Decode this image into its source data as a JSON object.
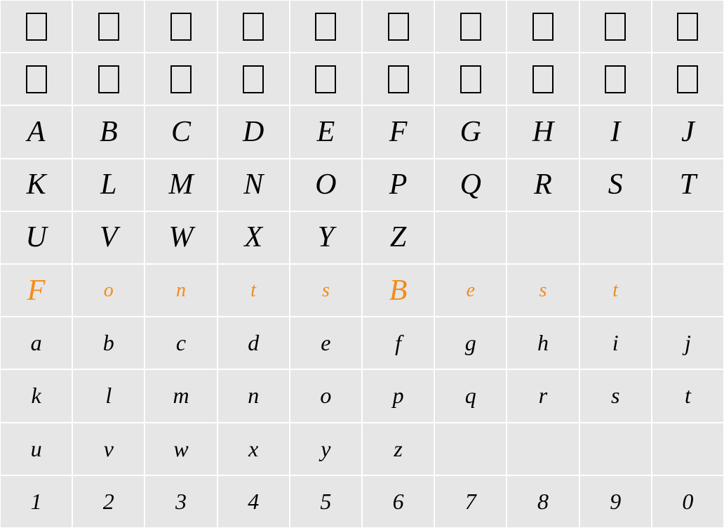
{
  "grid": {
    "type": "table",
    "columns": 10,
    "rows": 10,
    "background_color": "#e6e6e6",
    "grid_line_color": "#ffffff",
    "cell_border_width": 1,
    "default_text_color": "#000000",
    "highlight_text_color": "#f28c1a",
    "cell_font_family": "serif-italic",
    "cells": [
      [
        {
          "type": "none"
        },
        {
          "type": "none"
        },
        {
          "type": "none"
        },
        {
          "type": "none"
        },
        {
          "type": "none"
        },
        {
          "type": "none"
        },
        {
          "type": "none"
        },
        {
          "type": "none"
        },
        {
          "type": "none"
        },
        {
          "type": "none"
        }
      ],
      [
        {
          "type": "none"
        },
        {
          "type": "none"
        },
        {
          "type": "none"
        },
        {
          "type": "none"
        },
        {
          "type": "none"
        },
        {
          "type": "none"
        },
        {
          "type": "none"
        },
        {
          "type": "none"
        },
        {
          "type": "none"
        },
        {
          "type": "none"
        }
      ],
      [
        {
          "type": "glyph",
          "value": "A",
          "size": "big"
        },
        {
          "type": "glyph",
          "value": "B",
          "size": "big"
        },
        {
          "type": "glyph",
          "value": "C",
          "size": "big"
        },
        {
          "type": "glyph",
          "value": "D",
          "size": "big"
        },
        {
          "type": "glyph",
          "value": "E",
          "size": "big"
        },
        {
          "type": "glyph",
          "value": "F",
          "size": "big"
        },
        {
          "type": "glyph",
          "value": "G",
          "size": "big"
        },
        {
          "type": "glyph",
          "value": "H",
          "size": "big"
        },
        {
          "type": "glyph",
          "value": "I",
          "size": "big"
        },
        {
          "type": "glyph",
          "value": "J",
          "size": "big"
        }
      ],
      [
        {
          "type": "glyph",
          "value": "K",
          "size": "big"
        },
        {
          "type": "glyph",
          "value": "L",
          "size": "big"
        },
        {
          "type": "glyph",
          "value": "M",
          "size": "big"
        },
        {
          "type": "glyph",
          "value": "N",
          "size": "big"
        },
        {
          "type": "glyph",
          "value": "O",
          "size": "big"
        },
        {
          "type": "glyph",
          "value": "P",
          "size": "big"
        },
        {
          "type": "glyph",
          "value": "Q",
          "size": "big"
        },
        {
          "type": "glyph",
          "value": "R",
          "size": "big"
        },
        {
          "type": "glyph",
          "value": "S",
          "size": "big"
        },
        {
          "type": "glyph",
          "value": "T",
          "size": "big"
        }
      ],
      [
        {
          "type": "glyph",
          "value": "U",
          "size": "big"
        },
        {
          "type": "glyph",
          "value": "V",
          "size": "big"
        },
        {
          "type": "glyph",
          "value": "W",
          "size": "big"
        },
        {
          "type": "glyph",
          "value": "X",
          "size": "big"
        },
        {
          "type": "glyph",
          "value": "Y",
          "size": "big"
        },
        {
          "type": "glyph",
          "value": "Z",
          "size": "big"
        },
        {
          "type": "empty"
        },
        {
          "type": "empty"
        },
        {
          "type": "empty"
        },
        {
          "type": "empty"
        }
      ],
      [
        {
          "type": "glyph",
          "value": "F",
          "highlight": true,
          "size": "big"
        },
        {
          "type": "glyph",
          "value": "o",
          "highlight": true,
          "size": "small"
        },
        {
          "type": "glyph",
          "value": "n",
          "highlight": true,
          "size": "small"
        },
        {
          "type": "glyph",
          "value": "t",
          "highlight": true,
          "size": "small"
        },
        {
          "type": "glyph",
          "value": "s",
          "highlight": true,
          "size": "small"
        },
        {
          "type": "glyph",
          "value": "B",
          "highlight": true,
          "size": "big"
        },
        {
          "type": "glyph",
          "value": "e",
          "highlight": true,
          "size": "small"
        },
        {
          "type": "glyph",
          "value": "s",
          "highlight": true,
          "size": "small"
        },
        {
          "type": "glyph",
          "value": "t",
          "highlight": true,
          "size": "small"
        },
        {
          "type": "empty"
        }
      ],
      [
        {
          "type": "glyph",
          "value": "a",
          "size": "medium"
        },
        {
          "type": "glyph",
          "value": "b",
          "size": "medium"
        },
        {
          "type": "glyph",
          "value": "c",
          "size": "medium"
        },
        {
          "type": "glyph",
          "value": "d",
          "size": "medium"
        },
        {
          "type": "glyph",
          "value": "e",
          "size": "medium"
        },
        {
          "type": "glyph",
          "value": "f",
          "size": "medium"
        },
        {
          "type": "glyph",
          "value": "g",
          "size": "medium"
        },
        {
          "type": "glyph",
          "value": "h",
          "size": "medium"
        },
        {
          "type": "glyph",
          "value": "i",
          "size": "medium"
        },
        {
          "type": "glyph",
          "value": "j",
          "size": "medium"
        }
      ],
      [
        {
          "type": "glyph",
          "value": "k",
          "size": "medium"
        },
        {
          "type": "glyph",
          "value": "l",
          "size": "medium"
        },
        {
          "type": "glyph",
          "value": "m",
          "size": "medium"
        },
        {
          "type": "glyph",
          "value": "n",
          "size": "medium"
        },
        {
          "type": "glyph",
          "value": "o",
          "size": "medium"
        },
        {
          "type": "glyph",
          "value": "p",
          "size": "medium"
        },
        {
          "type": "glyph",
          "value": "q",
          "size": "medium"
        },
        {
          "type": "glyph",
          "value": "r",
          "size": "medium"
        },
        {
          "type": "glyph",
          "value": "s",
          "size": "medium"
        },
        {
          "type": "glyph",
          "value": "t",
          "size": "medium"
        }
      ],
      [
        {
          "type": "glyph",
          "value": "u",
          "size": "medium"
        },
        {
          "type": "glyph",
          "value": "v",
          "size": "medium"
        },
        {
          "type": "glyph",
          "value": "w",
          "size": "medium"
        },
        {
          "type": "glyph",
          "value": "x",
          "size": "medium"
        },
        {
          "type": "glyph",
          "value": "y",
          "size": "medium"
        },
        {
          "type": "glyph",
          "value": "z",
          "size": "medium"
        },
        {
          "type": "empty"
        },
        {
          "type": "empty"
        },
        {
          "type": "empty"
        },
        {
          "type": "empty"
        }
      ],
      [
        {
          "type": "glyph",
          "value": "1",
          "size": "medium"
        },
        {
          "type": "glyph",
          "value": "2",
          "size": "medium"
        },
        {
          "type": "glyph",
          "value": "3",
          "size": "medium"
        },
        {
          "type": "glyph",
          "value": "4",
          "size": "medium"
        },
        {
          "type": "glyph",
          "value": "5",
          "size": "medium"
        },
        {
          "type": "glyph",
          "value": "6",
          "size": "medium"
        },
        {
          "type": "glyph",
          "value": "7",
          "size": "medium"
        },
        {
          "type": "glyph",
          "value": "8",
          "size": "medium"
        },
        {
          "type": "glyph",
          "value": "9",
          "size": "medium"
        },
        {
          "type": "glyph",
          "value": "0",
          "size": "medium"
        }
      ]
    ]
  }
}
